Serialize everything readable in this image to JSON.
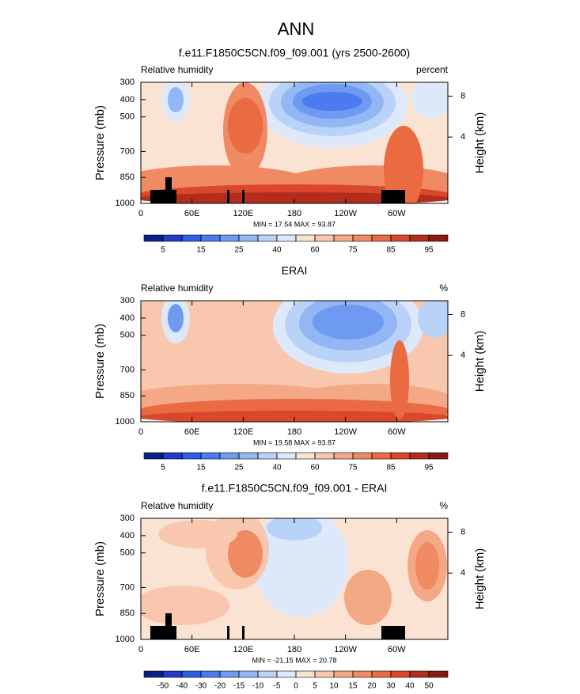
{
  "title": "ANN",
  "chart_data": [
    {
      "type": "contour",
      "title": "f.e11.F1850C5CN.f09_f09.001 (yrs 2500-2600)",
      "left_label": "Relative humidity",
      "right_label": "percent",
      "ylabel": "Pressure (mb)",
      "y2label": "Height (km)",
      "xlim": [
        0,
        360
      ],
      "xticks": [
        0,
        {
          "value": 60,
          "label": "60E"
        },
        {
          "value": 120,
          "label": "120E"
        },
        180,
        {
          "value": 240,
          "label": "120W"
        },
        {
          "value": 300,
          "label": "60W"
        }
      ],
      "ylim": [
        1000,
        300
      ],
      "yticks": [
        300,
        400,
        500,
        700,
        850,
        1000
      ],
      "y2ticks": [
        8,
        4
      ],
      "stats": "MIN = 17.54  MAX = 93.87",
      "levels": [
        5,
        10,
        15,
        20,
        25,
        30,
        40,
        50,
        60,
        70,
        75,
        80,
        85,
        90,
        95
      ],
      "level_labels_every": 2,
      "colors": [
        "#0a1e8c",
        "#1e3cc8",
        "#2f5ee6",
        "#4a7bf0",
        "#6f9af2",
        "#93b6f5",
        "#b8d2f8",
        "#dde9fa",
        "#fbe3d4",
        "#f8c7ad",
        "#f4a885",
        "#f08a62",
        "#ea6a42",
        "#d9482a",
        "#b32d1d",
        "#8a1a12"
      ]
    },
    {
      "type": "contour",
      "title": "ERAI",
      "left_label": "Relative humidity",
      "right_label": "%",
      "ylabel": "Pressure (mb)",
      "y2label": "Height (km)",
      "xlim": [
        0,
        360
      ],
      "xticks": [
        0,
        {
          "value": 60,
          "label": "60E"
        },
        {
          "value": 120,
          "label": "120E"
        },
        180,
        {
          "value": 240,
          "label": "120W"
        },
        {
          "value": 300,
          "label": "60W"
        }
      ],
      "ylim": [
        1000,
        300
      ],
      "yticks": [
        300,
        400,
        500,
        700,
        850,
        1000
      ],
      "y2ticks": [
        8,
        4
      ],
      "stats": "MIN = 19.58  MAX = 93.87",
      "levels": [
        5,
        10,
        15,
        20,
        25,
        30,
        40,
        50,
        60,
        70,
        75,
        80,
        85,
        90,
        95
      ],
      "level_labels_every": 2,
      "colors": [
        "#0a1e8c",
        "#1e3cc8",
        "#2f5ee6",
        "#4a7bf0",
        "#6f9af2",
        "#93b6f5",
        "#b8d2f8",
        "#dde9fa",
        "#fbe3d4",
        "#f8c7ad",
        "#f4a885",
        "#f08a62",
        "#ea6a42",
        "#d9482a",
        "#b32d1d",
        "#8a1a12"
      ]
    },
    {
      "type": "contour",
      "title": "f.e11.F1850C5CN.f09_f09.001 - ERAI",
      "left_label": "Relative humidity",
      "right_label": "%",
      "ylabel": "Pressure (mb)",
      "y2label": "Height (km)",
      "xlim": [
        0,
        360
      ],
      "xticks": [
        0,
        {
          "value": 60,
          "label": "60E"
        },
        {
          "value": 120,
          "label": "120E"
        },
        180,
        {
          "value": 240,
          "label": "120W"
        },
        {
          "value": 300,
          "label": "60W"
        }
      ],
      "ylim": [
        1000,
        300
      ],
      "yticks": [
        300,
        400,
        500,
        700,
        850,
        1000
      ],
      "y2ticks": [
        8,
        4
      ],
      "stats": "MIN = -21.15  MAX = 20.78",
      "levels": [
        -50,
        -40,
        -30,
        -20,
        -15,
        -10,
        -5,
        0,
        5,
        10,
        15,
        20,
        30,
        40,
        50
      ],
      "level_labels_every": 1,
      "colors": [
        "#0a1e8c",
        "#1e3cc8",
        "#2f5ee6",
        "#4a7bf0",
        "#6f9af2",
        "#93b6f5",
        "#b8d2f8",
        "#dde9fa",
        "#fbe3d4",
        "#f8c7ad",
        "#f4a885",
        "#f08a62",
        "#ea6a42",
        "#d9482a",
        "#b32d1d",
        "#8a1a12"
      ]
    }
  ]
}
